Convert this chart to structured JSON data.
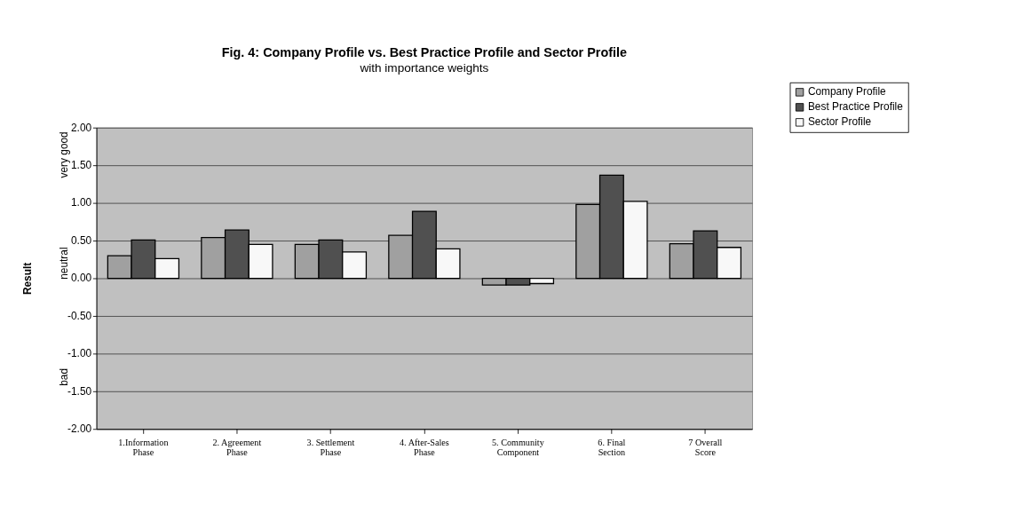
{
  "chart_data": {
    "type": "bar",
    "title": "Fig. 4: Company Profile vs. Best Practice Profile and Sector Profile",
    "subtitle": "with importance weights",
    "ylabel": "Result",
    "categories": [
      "1.Information Phase",
      "2. Agreement Phase",
      "3. Settlement Phase",
      "4. After-Sales Phase",
      "5. Community Component",
      "6. Final Section",
      "7 Overall Score"
    ],
    "series": [
      {
        "name": "Company Profile",
        "color": "#a0a0a0",
        "values": [
          0.3,
          0.54,
          0.45,
          0.57,
          -0.09,
          0.98,
          0.46
        ]
      },
      {
        "name": "Best Practice Profile",
        "color": "#505050",
        "values": [
          0.51,
          0.64,
          0.51,
          0.89,
          -0.09,
          1.37,
          0.63
        ]
      },
      {
        "name": "Sector Profile",
        "color": "#f8f8f8",
        "values": [
          0.26,
          0.45,
          0.35,
          0.39,
          -0.07,
          1.02,
          0.41
        ]
      }
    ],
    "ylim": [
      -2,
      2
    ],
    "yticks": [
      {
        "value": -2,
        "label": "-2.00"
      },
      {
        "value": -1.5,
        "label": "-1.50"
      },
      {
        "value": -1,
        "label": "-1.00"
      },
      {
        "value": -0.5,
        "label": "-0.50"
      },
      {
        "value": 0,
        "label": "0.00"
      },
      {
        "value": 0.5,
        "label": "0.50"
      },
      {
        "value": 1,
        "label": "1.00"
      },
      {
        "value": 1.5,
        "label": "1.50"
      },
      {
        "value": 2,
        "label": "2.00"
      }
    ],
    "annotations": [
      "very good",
      "neutral",
      "bad"
    ],
    "grid": "y",
    "legend": "top right"
  }
}
